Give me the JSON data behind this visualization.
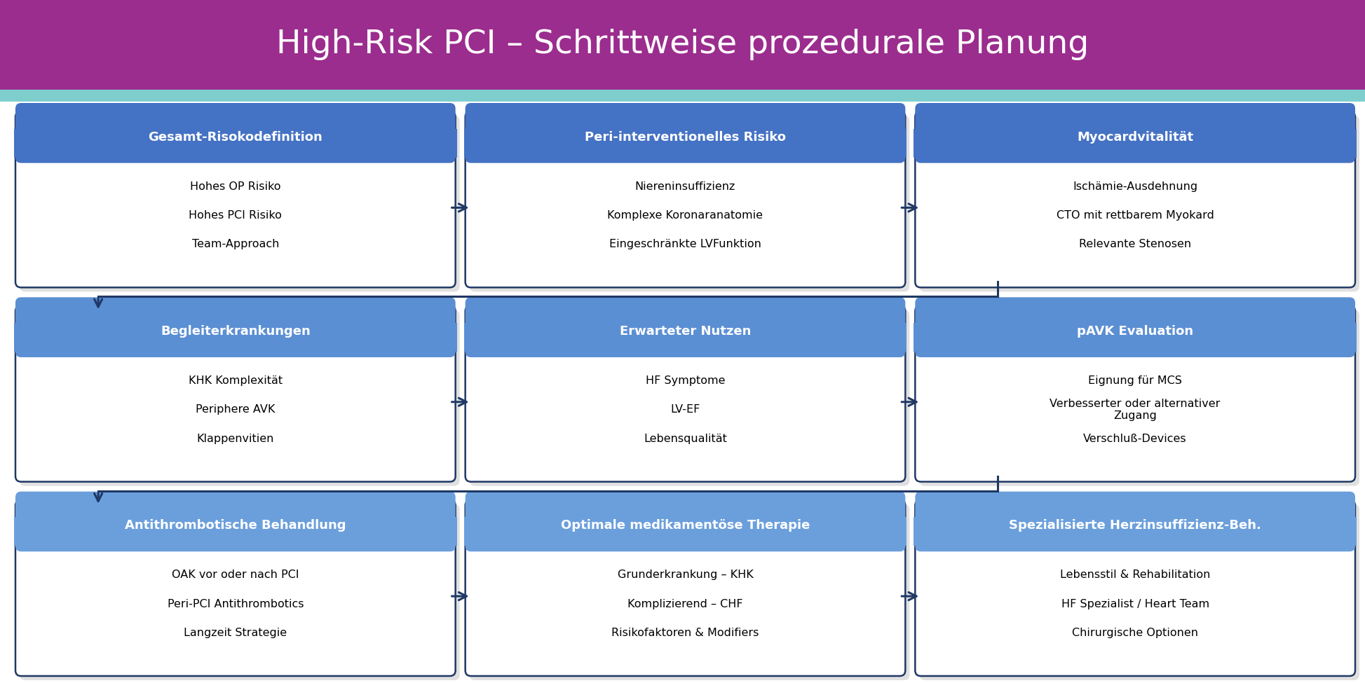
{
  "title": "High-Risk PCI – Schrittweise prozedurale Planung",
  "title_bg": "#9B2D8E",
  "title_color": "white",
  "accent_bar_color": "#7ECECE",
  "box_border_color": "#1F3864",
  "box_bg": "white",
  "arrow_color": "#1F3864",
  "background_color": "#FFFFFF",
  "content_bg": "#F0F8FF",
  "header_color_by_row": [
    "#4472C4",
    "#5B8FD4",
    "#6B9FDC"
  ],
  "boxes": [
    {
      "row": 0,
      "col": 0,
      "header": "Gesamt-Risokodefinition",
      "lines": [
        "Hohes OP Risiko",
        "Hohes PCI Risiko",
        "Team-Approach"
      ]
    },
    {
      "row": 0,
      "col": 1,
      "header": "Peri-interventionelles Risiko",
      "lines": [
        "Niereninsuffizienz",
        "Komplexe Koronaranatomie",
        "Eingeschränkte LVFunktion"
      ]
    },
    {
      "row": 0,
      "col": 2,
      "header": "Myocardvitalität",
      "lines": [
        "Ischämie-Ausdehnung",
        "CTO mit rettbarem Myokard",
        "Relevante Stenosen"
      ]
    },
    {
      "row": 1,
      "col": 0,
      "header": "Begleiterkrankungen",
      "lines": [
        "KHK Komplexität",
        "Periphere AVK",
        "Klappenvitien"
      ]
    },
    {
      "row": 1,
      "col": 1,
      "header": "Erwarteter Nutzen",
      "lines": [
        "HF Symptome",
        "LV-EF",
        "Lebensqualität"
      ]
    },
    {
      "row": 1,
      "col": 2,
      "header": "pAVK Evaluation",
      "lines": [
        "Eignung für MCS",
        "Verbesserter oder alternativer\nZugang",
        "Verschluß-Devices"
      ]
    },
    {
      "row": 2,
      "col": 0,
      "header": "Antithrombotische Behandlung",
      "lines": [
        "OAK vor oder nach PCI",
        "Peri-PCI Antithrombotics",
        "Langzeit Strategie"
      ]
    },
    {
      "row": 2,
      "col": 1,
      "header": "Optimale medikamentöse Therapie",
      "lines": [
        "Grunderkrankung – KHK",
        "Komplizierend – CHF",
        "Risikofaktoren & Modifiers"
      ]
    },
    {
      "row": 2,
      "col": 2,
      "header": "Spezialisierte Herzinsuffizienz-Beh.",
      "lines": [
        "Lebensstil & Rehabilitation",
        "HF Spezialist / Heart Team",
        "Chirurgische Optionen"
      ]
    }
  ],
  "title_fontsize": 34,
  "header_fontsize": 13,
  "body_fontsize": 11.5
}
